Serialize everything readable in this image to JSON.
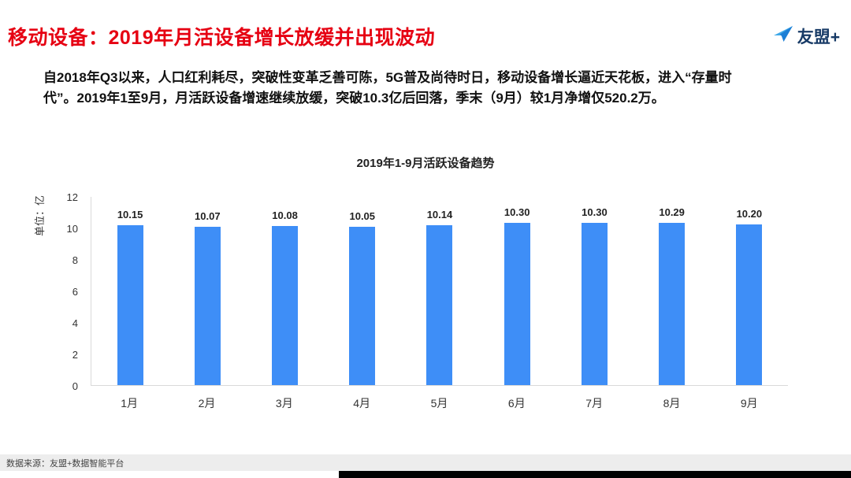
{
  "header": {
    "title": "移动设备：2019年月活设备增长放缓并出现波动",
    "logo_text": "友盟+"
  },
  "intro": {
    "text": "自2018年Q3以来，人口红利耗尽，突破性变革乏善可陈，5G普及尚待时日，移动设备增长逼近天花板，进入“存量时代”。2019年1至9月，月活跃设备增速继续放缓，突破10.3亿后回落，季末（9月）较1月净增仅520.2万。"
  },
  "chart_data": {
    "type": "bar",
    "title": "2019年1-9月活跃设备趋势",
    "categories": [
      "1月",
      "2月",
      "3月",
      "4月",
      "5月",
      "6月",
      "7月",
      "8月",
      "9月"
    ],
    "values": [
      10.15,
      10.07,
      10.08,
      10.05,
      10.14,
      10.3,
      10.3,
      10.29,
      10.2
    ],
    "value_labels": [
      "10.15",
      "10.07",
      "10.08",
      "10.05",
      "10.14",
      "10.30",
      "10.30",
      "10.29",
      "10.20"
    ],
    "xlabel": "",
    "ylabel": "单位：亿",
    "ylim": [
      0,
      12
    ],
    "yticks": [
      0,
      2,
      4,
      6,
      8,
      10,
      12
    ],
    "bar_color": "#3E8EF7",
    "grid": false,
    "legend": "none"
  },
  "footer": {
    "source": "数据来源：友盟+数据智能平台"
  },
  "colors": {
    "title_red": "#E60012",
    "logo_navy": "#173A66",
    "logo_blue_light": "#3FA8E8",
    "logo_blue_dark": "#1C7FD6",
    "axis_gray": "#D9D9D9"
  }
}
